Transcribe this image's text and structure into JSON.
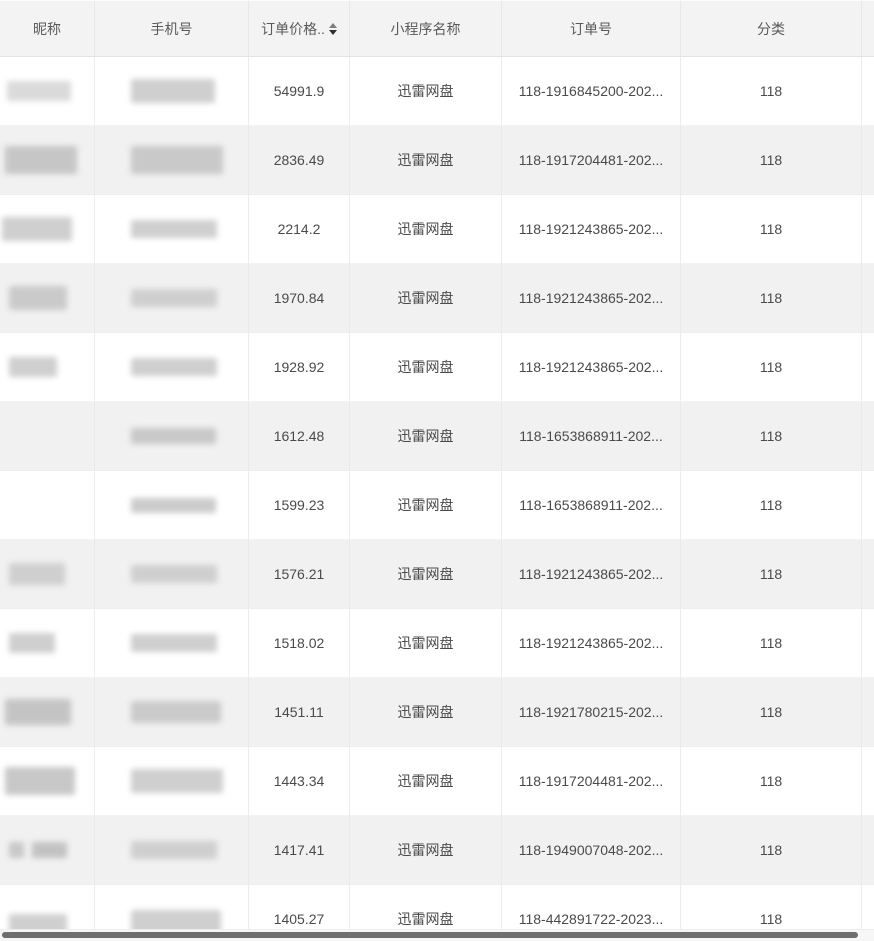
{
  "table": {
    "header": {
      "nickname": "昵称",
      "phone": "手机号",
      "price": "订单价格..",
      "app": "小程序名称",
      "order": "订单号",
      "category": "分类"
    },
    "sort_icon": "caret-up-down",
    "rows": [
      {
        "price": "54991.9",
        "app": "迅雷网盘",
        "order": "118-1916845200-202...",
        "category": "118"
      },
      {
        "price": "2836.49",
        "app": "迅雷网盘",
        "order": "118-1917204481-202...",
        "category": "118"
      },
      {
        "price": "2214.2",
        "app": "迅雷网盘",
        "order": "118-1921243865-202...",
        "category": "118"
      },
      {
        "price": "1970.84",
        "app": "迅雷网盘",
        "order": "118-1921243865-202...",
        "category": "118"
      },
      {
        "price": "1928.92",
        "app": "迅雷网盘",
        "order": "118-1921243865-202...",
        "category": "118"
      },
      {
        "price": "1612.48",
        "app": "迅雷网盘",
        "order": "118-1653868911-202...",
        "category": "118"
      },
      {
        "price": "1599.23",
        "app": "迅雷网盘",
        "order": "118-1653868911-202...",
        "category": "118"
      },
      {
        "price": "1576.21",
        "app": "迅雷网盘",
        "order": "118-1921243865-202...",
        "category": "118"
      },
      {
        "price": "1518.02",
        "app": "迅雷网盘",
        "order": "118-1921243865-202...",
        "category": "118"
      },
      {
        "price": "1451.11",
        "app": "迅雷网盘",
        "order": "118-1921780215-202...",
        "category": "118"
      },
      {
        "price": "1443.34",
        "app": "迅雷网盘",
        "order": "118-1917204481-202...",
        "category": "118"
      },
      {
        "price": "1417.41",
        "app": "迅雷网盘",
        "order": "118-1949007048-202...",
        "category": "118"
      },
      {
        "price": "1405.27",
        "app": "迅雷网盘",
        "order": "118-442891722-2023...",
        "category": "118"
      }
    ]
  },
  "colors": {
    "header_bg": "#f3f3f3",
    "stripe_bg": "#f1f1f1",
    "text": "#4a4a4a",
    "scrollbar_thumb": "#6e6e6e"
  }
}
